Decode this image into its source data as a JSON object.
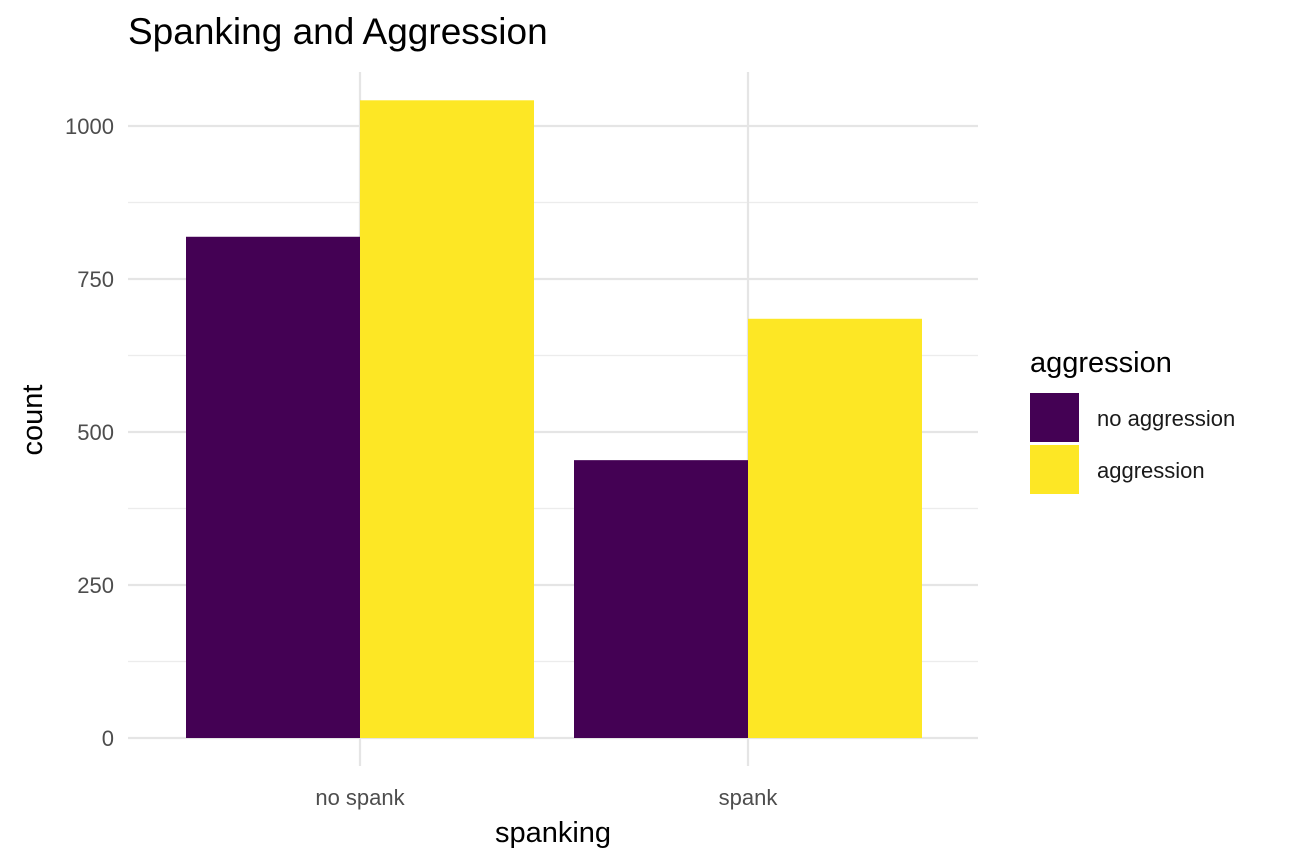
{
  "chart_data": {
    "type": "bar",
    "title": "Spanking and Aggression",
    "xlabel": "spanking",
    "ylabel": "count",
    "categories": [
      "no spank",
      "spank"
    ],
    "series": [
      {
        "name": "no aggression",
        "color": "#440154",
        "values": [
          819,
          454
        ]
      },
      {
        "name": "aggression",
        "color": "#FDE725",
        "values": [
          1042,
          685
        ]
      }
    ],
    "ylim": [
      0,
      1090
    ],
    "yticks": [
      0,
      250,
      500,
      750,
      1000
    ],
    "grid": true,
    "legend": {
      "title": "aggression",
      "position": "right"
    }
  }
}
